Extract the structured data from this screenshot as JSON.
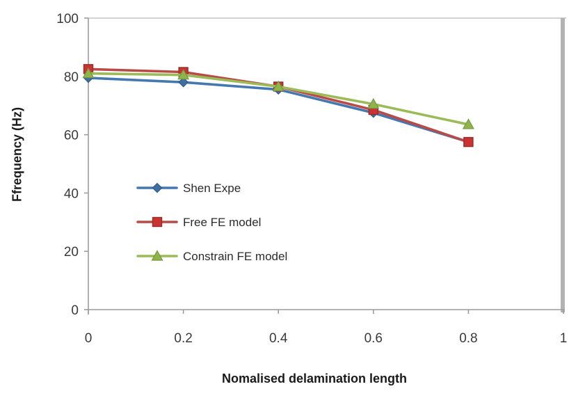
{
  "chart_data": {
    "type": "line",
    "title": "",
    "xlabel": "Nomalised delamination length",
    "ylabel": "Ffrequency (Hz)",
    "xlim": [
      0,
      1
    ],
    "ylim": [
      0,
      100
    ],
    "x_ticks": [
      "0",
      "0.2",
      "0.4",
      "0.6",
      "0.8",
      "1"
    ],
    "y_ticks": [
      "0",
      "20",
      "40",
      "60",
      "80",
      "100"
    ],
    "grid": false,
    "legend_position": "inside-left-middle",
    "x": [
      0,
      0.2,
      0.4,
      0.6,
      0.8
    ],
    "series": [
      {
        "name": "Shen Expe",
        "marker": "diamond",
        "color": "#4478b0",
        "marker_fill": "#3f6fa3",
        "marker_stroke": "#2f5a88",
        "values": [
          79.5,
          78,
          75.5,
          67.5,
          57.5
        ]
      },
      {
        "name": "Free FE model",
        "marker": "square",
        "color": "#b84b47",
        "marker_fill": "#cc3231",
        "marker_stroke": "#8f2f2c",
        "values": [
          82.5,
          81.5,
          76.5,
          68.5,
          57.5
        ]
      },
      {
        "name": "Constrain FE model",
        "marker": "triangle",
        "color": "#9bbb59",
        "marker_fill": "#8fb44a",
        "marker_stroke": "#769940",
        "values": [
          81,
          80.5,
          76.5,
          70.5,
          63.5
        ]
      }
    ],
    "colors": {
      "axis_line": "#9c9c9c",
      "plot_top_border": "#d2d2d2",
      "plot_right_wall": "#b3b3b3",
      "tick_text": "#3a3a3a"
    }
  }
}
